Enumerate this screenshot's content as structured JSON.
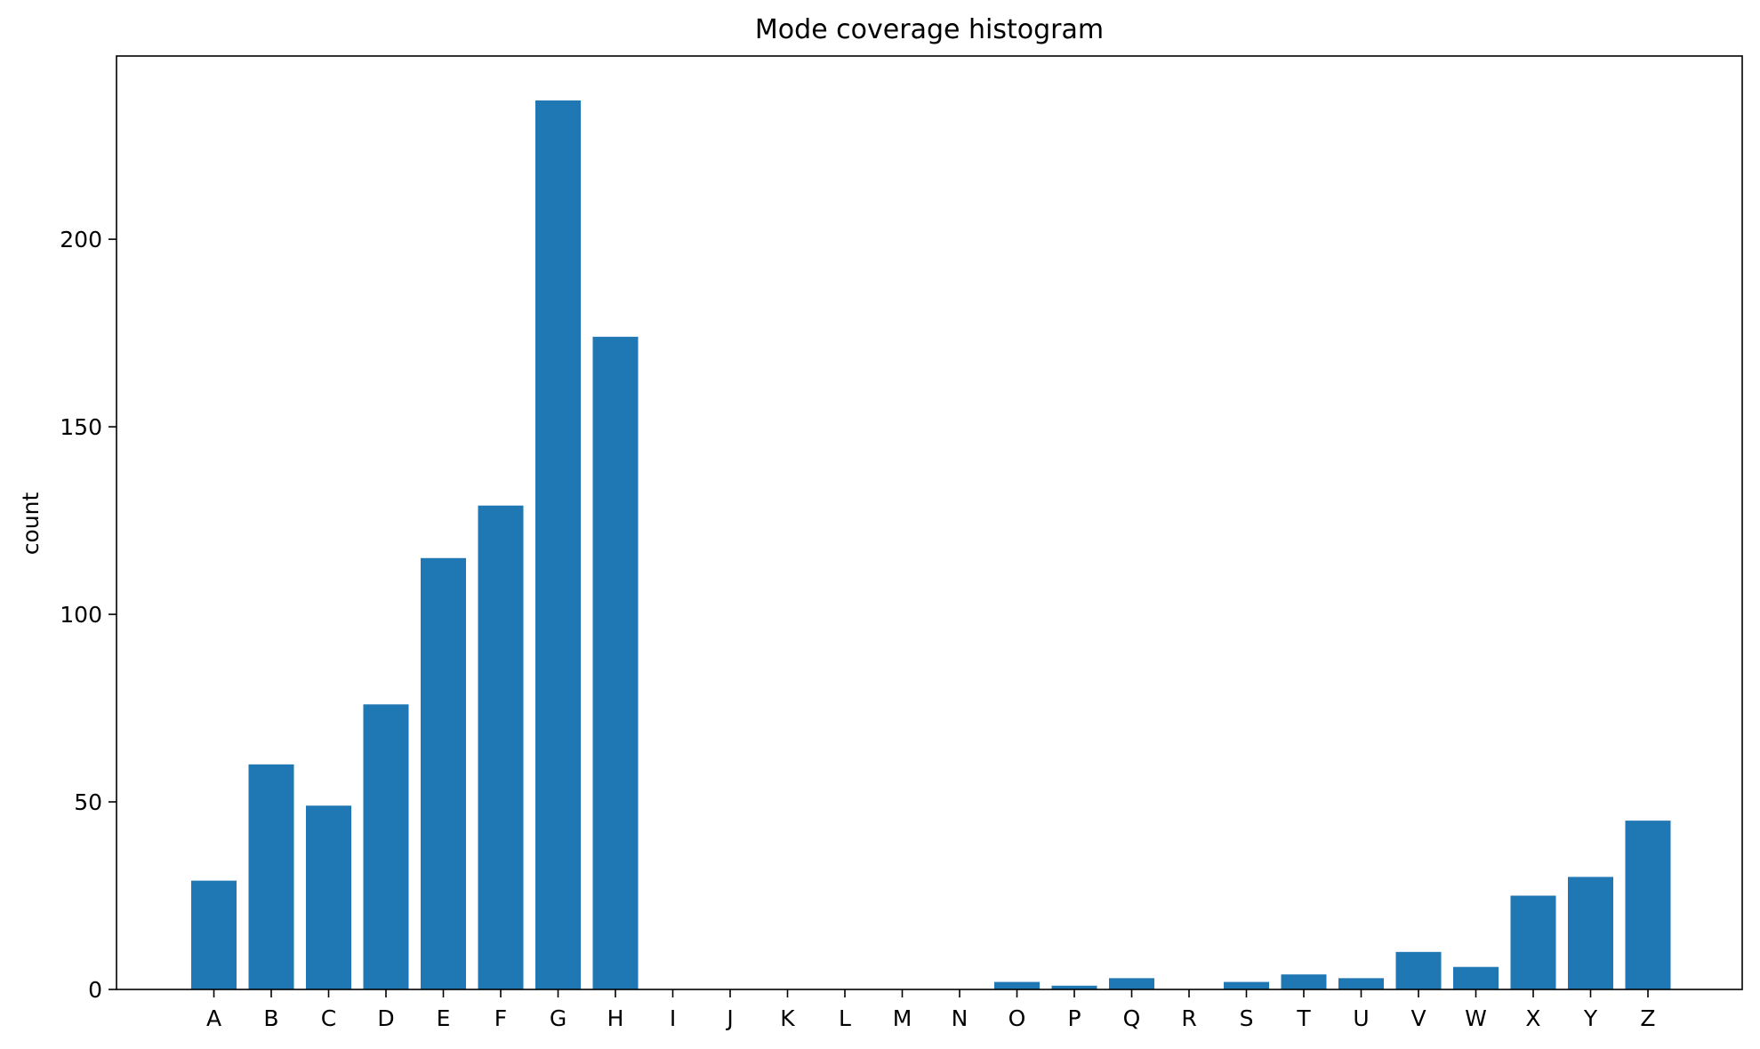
{
  "chart_data": {
    "type": "bar",
    "title": "Mode coverage histogram",
    "xlabel": "",
    "ylabel": "count",
    "categories": [
      "A",
      "B",
      "C",
      "D",
      "E",
      "F",
      "G",
      "H",
      "I",
      "J",
      "K",
      "L",
      "M",
      "N",
      "O",
      "P",
      "Q",
      "R",
      "S",
      "T",
      "U",
      "V",
      "W",
      "X",
      "Y",
      "Z"
    ],
    "values": [
      29,
      60,
      49,
      76,
      115,
      129,
      237,
      174,
      0,
      0,
      0,
      0,
      0,
      0,
      2,
      1,
      3,
      0,
      2,
      4,
      3,
      10,
      6,
      25,
      30,
      45
    ],
    "ylim": [
      0,
      248.85
    ],
    "yticks": [
      0,
      50,
      100,
      150,
      200
    ],
    "bar_color": "#1f77b4",
    "grid": false,
    "legend": "none"
  }
}
